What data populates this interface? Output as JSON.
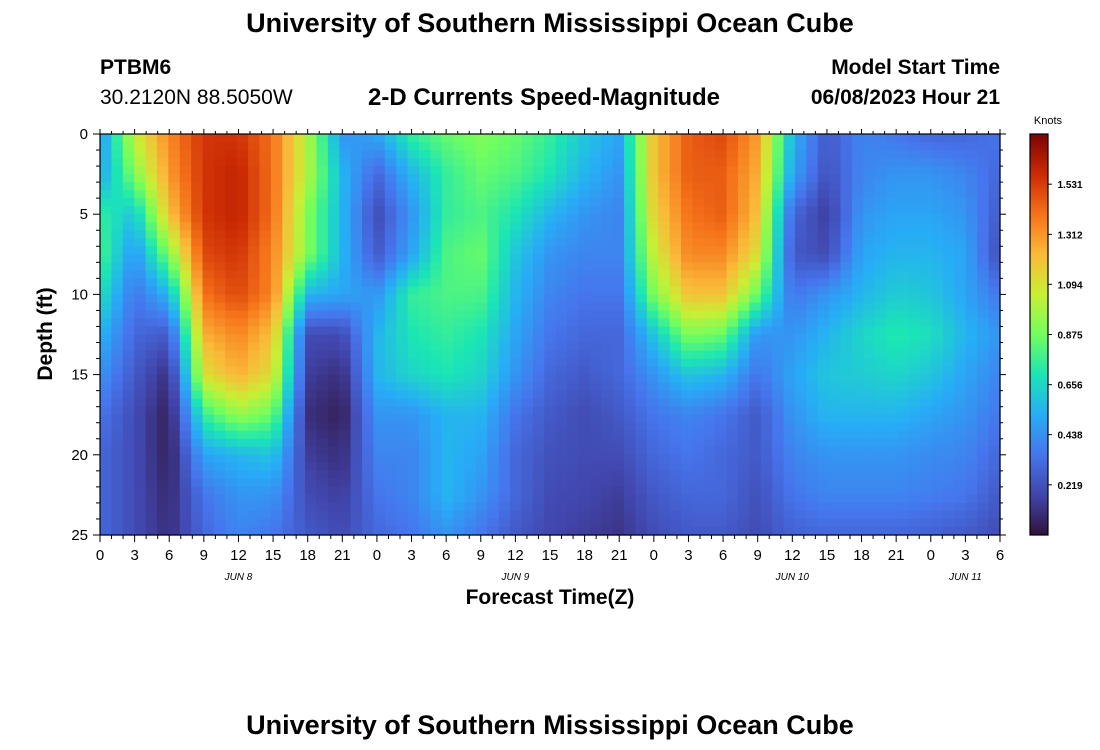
{
  "header": {
    "title": "University of Southern Mississippi Ocean Cube",
    "station_id": "PTBM6",
    "station_coords": "30.2120N  88.5050W",
    "subtitle": "2-D Currents Speed-Magnitude",
    "model_start_label": "Model Start Time",
    "model_start_value": "06/08/2023 Hour 21"
  },
  "footer": {
    "title": "University of Southern Mississippi Ocean Cube"
  },
  "chart_data": {
    "type": "heatmap",
    "title": "2-D Currents Speed-Magnitude",
    "xlabel": "Forecast Time(Z)",
    "ylabel": "Depth (ft)",
    "x_unit": "hours from Jun 8 00Z",
    "xlim": [
      0,
      78
    ],
    "ylim": [
      0,
      25
    ],
    "x_ticks": [
      {
        "value": 0,
        "label": "0"
      },
      {
        "value": 3,
        "label": "3"
      },
      {
        "value": 6,
        "label": "6"
      },
      {
        "value": 9,
        "label": "9"
      },
      {
        "value": 12,
        "label": "12"
      },
      {
        "value": 15,
        "label": "15"
      },
      {
        "value": 18,
        "label": "18"
      },
      {
        "value": 21,
        "label": "21"
      },
      {
        "value": 24,
        "label": "0"
      },
      {
        "value": 27,
        "label": "3"
      },
      {
        "value": 30,
        "label": "6"
      },
      {
        "value": 33,
        "label": "9"
      },
      {
        "value": 36,
        "label": "12"
      },
      {
        "value": 39,
        "label": "15"
      },
      {
        "value": 42,
        "label": "18"
      },
      {
        "value": 45,
        "label": "21"
      },
      {
        "value": 48,
        "label": "0"
      },
      {
        "value": 51,
        "label": "3"
      },
      {
        "value": 54,
        "label": "6"
      },
      {
        "value": 57,
        "label": "9"
      },
      {
        "value": 60,
        "label": "12"
      },
      {
        "value": 63,
        "label": "15"
      },
      {
        "value": 66,
        "label": "18"
      },
      {
        "value": 69,
        "label": "21"
      },
      {
        "value": 72,
        "label": "0"
      },
      {
        "value": 75,
        "label": "3"
      },
      {
        "value": 78,
        "label": "6"
      }
    ],
    "day_labels": [
      {
        "value": 12,
        "label": "JUN 8"
      },
      {
        "value": 36,
        "label": "JUN 9"
      },
      {
        "value": 60,
        "label": "JUN 10"
      },
      {
        "value": 75,
        "label": "JUN 11"
      }
    ],
    "y_ticks": [
      0,
      5,
      10,
      15,
      20,
      25
    ],
    "colorbar": {
      "label": "Knots",
      "min": 0,
      "max": 1.75,
      "ticks": [
        "1.531",
        "1.312",
        "1.094",
        "0.875",
        "0.656",
        "0.438",
        "0.219"
      ],
      "tick_values": [
        1.531,
        1.312,
        1.094,
        0.875,
        0.656,
        0.438,
        0.219
      ]
    },
    "grid": false,
    "grid_x_hours": [
      0,
      3,
      6,
      9,
      12,
      15,
      18,
      21,
      24,
      27,
      30,
      33,
      36,
      39,
      42,
      45,
      48,
      51,
      54,
      57,
      60,
      63,
      66,
      69,
      72,
      75,
      78
    ],
    "grid_depths_ft": [
      0,
      2.5,
      5,
      7.5,
      10,
      12.5,
      15,
      17.5,
      20,
      22.5,
      25
    ],
    "speed_knots": [
      [
        0.45,
        1.05,
        1.35,
        1.55,
        1.55,
        1.4,
        1.0,
        0.45,
        0.5,
        0.75,
        0.85,
        0.9,
        0.85,
        0.75,
        0.6,
        0.5,
        1.2,
        1.45,
        1.5,
        1.3,
        0.55,
        0.25,
        0.4,
        0.35,
        0.3,
        0.3,
        0.35
      ],
      [
        0.5,
        0.9,
        1.3,
        1.55,
        1.6,
        1.4,
        1.0,
        0.55,
        0.3,
        0.55,
        0.75,
        0.85,
        0.8,
        0.7,
        0.55,
        0.45,
        1.2,
        1.45,
        1.45,
        1.25,
        0.5,
        0.22,
        0.4,
        0.45,
        0.45,
        0.4,
        0.3
      ],
      [
        0.75,
        0.6,
        1.2,
        1.55,
        1.6,
        1.4,
        0.9,
        0.55,
        0.2,
        0.45,
        0.75,
        0.8,
        0.7,
        0.55,
        0.45,
        0.4,
        1.15,
        1.4,
        1.45,
        1.2,
        0.3,
        0.15,
        0.45,
        0.5,
        0.5,
        0.45,
        0.25
      ],
      [
        0.8,
        0.45,
        0.9,
        1.5,
        1.55,
        1.35,
        0.9,
        0.55,
        0.25,
        0.5,
        0.8,
        0.85,
        0.6,
        0.45,
        0.4,
        0.4,
        1.05,
        1.35,
        1.35,
        1.1,
        0.25,
        0.2,
        0.5,
        0.55,
        0.55,
        0.5,
        0.2
      ],
      [
        0.7,
        0.35,
        0.55,
        1.4,
        1.5,
        1.35,
        0.55,
        0.5,
        0.45,
        0.75,
        0.8,
        0.8,
        0.55,
        0.4,
        0.35,
        0.35,
        0.9,
        1.2,
        1.2,
        0.85,
        0.35,
        0.45,
        0.55,
        0.62,
        0.6,
        0.5,
        0.35
      ],
      [
        0.55,
        0.3,
        0.25,
        1.25,
        1.35,
        1.2,
        0.2,
        0.2,
        0.55,
        0.7,
        0.75,
        0.7,
        0.5,
        0.35,
        0.3,
        0.3,
        0.6,
        0.9,
        0.85,
        0.45,
        0.45,
        0.55,
        0.65,
        0.72,
        0.68,
        0.55,
        0.45
      ],
      [
        0.45,
        0.25,
        0.1,
        1.1,
        1.25,
        1.1,
        0.15,
        0.1,
        0.55,
        0.65,
        0.7,
        0.65,
        0.45,
        0.3,
        0.25,
        0.3,
        0.45,
        0.6,
        0.55,
        0.35,
        0.5,
        0.6,
        0.62,
        0.65,
        0.6,
        0.5,
        0.4
      ],
      [
        0.35,
        0.2,
        0.05,
        0.75,
        0.95,
        0.85,
        0.1,
        0.05,
        0.45,
        0.45,
        0.55,
        0.55,
        0.35,
        0.25,
        0.2,
        0.25,
        0.35,
        0.4,
        0.35,
        0.25,
        0.45,
        0.55,
        0.55,
        0.55,
        0.5,
        0.45,
        0.35
      ],
      [
        0.3,
        0.2,
        0.05,
        0.5,
        0.55,
        0.6,
        0.15,
        0.1,
        0.4,
        0.4,
        0.55,
        0.5,
        0.3,
        0.22,
        0.2,
        0.2,
        0.3,
        0.35,
        0.3,
        0.25,
        0.4,
        0.45,
        0.45,
        0.45,
        0.42,
        0.4,
        0.3
      ],
      [
        0.3,
        0.2,
        0.08,
        0.35,
        0.45,
        0.45,
        0.2,
        0.15,
        0.35,
        0.4,
        0.55,
        0.45,
        0.3,
        0.2,
        0.18,
        0.15,
        0.25,
        0.3,
        0.3,
        0.22,
        0.35,
        0.4,
        0.4,
        0.4,
        0.38,
        0.35,
        0.25
      ],
      [
        0.3,
        0.2,
        0.1,
        0.3,
        0.4,
        0.35,
        0.25,
        0.2,
        0.3,
        0.35,
        0.45,
        0.35,
        0.25,
        0.18,
        0.15,
        0.12,
        0.2,
        0.25,
        0.25,
        0.2,
        0.28,
        0.3,
        0.3,
        0.3,
        0.28,
        0.25,
        0.2
      ]
    ]
  }
}
